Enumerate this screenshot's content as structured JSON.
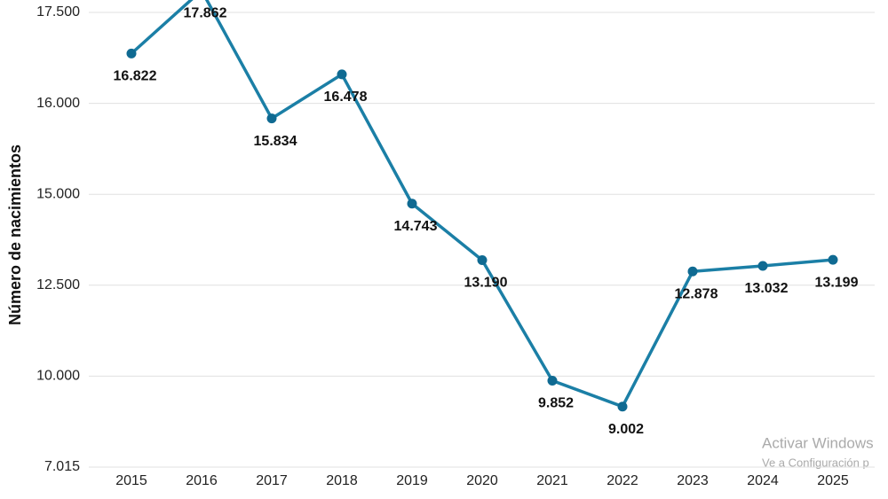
{
  "chart_data": {
    "type": "line",
    "y_label": "Número de nacimientos",
    "categories": [
      "2015",
      "2016",
      "2017",
      "2018",
      "2019",
      "2020",
      "2021",
      "2022",
      "2023",
      "2024",
      "2025"
    ],
    "values": [
      16822,
      17862,
      15834,
      16478,
      14743,
      13190,
      9852,
      9002,
      12878,
      13032,
      13199
    ],
    "value_labels": [
      "16.822",
      "17.862",
      "15.834",
      "16.478",
      "14.743",
      "13.190",
      "9.852",
      "9.002",
      "12.878",
      "13.032",
      "13.199"
    ],
    "color": "#1b7fa6",
    "marker_color": "#0f6a92",
    "ylim": [
      7015,
      17500
    ],
    "yticks": [
      {
        "value": 7015,
        "label": "7.015"
      },
      {
        "value": 10000,
        "label": "10.000"
      },
      {
        "value": 12500,
        "label": "12.500"
      },
      {
        "value": 15000,
        "label": "15.000"
      },
      {
        "value": 16000,
        "label": "16.000"
      },
      {
        "value": 17500,
        "label": "17.500"
      }
    ],
    "grid": true
  },
  "watermark": {
    "title": "Activar Windows",
    "subtitle": "Ve a Configuración p"
  }
}
